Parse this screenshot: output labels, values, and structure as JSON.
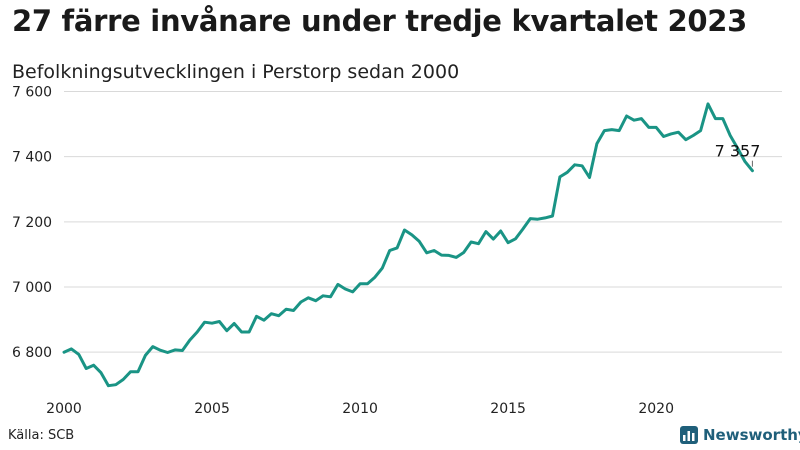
{
  "title": "27 färre invånare under tredje kvartalet 2023",
  "subtitle": "Befolkningsutvecklingen i Perstorp sedan 2000",
  "source": "Källa: SCB",
  "brand": {
    "name": "Newsworthy",
    "icon": "bar-chart-logo-icon",
    "color": "#1f5f7a"
  },
  "chart_data": {
    "type": "line",
    "title": "27 färre invånare under tredje kvartalet 2023",
    "subtitle": "Befolkningsutvecklingen i Perstorp sedan 2000",
    "xlabel": "",
    "ylabel": "",
    "x_ticks": [
      "2000",
      "2005",
      "2010",
      "2015",
      "2020"
    ],
    "y_ticks": [
      "6 800",
      "7 000",
      "7 200",
      "7 400",
      "7 600"
    ],
    "xlim": [
      2000,
      2024.25
    ],
    "ylim": [
      6690,
      7620
    ],
    "grid": "horizontal",
    "line_color": "#1a9485",
    "end_label": "7 357",
    "series": [
      {
        "name": "",
        "x_start": 2000.0,
        "x_step": 0.25,
        "values": [
          6800,
          6810,
          6793,
          6750,
          6760,
          6737,
          6697,
          6700,
          6716,
          6740,
          6740,
          6790,
          6817,
          6806,
          6799,
          6807,
          6805,
          6837,
          6862,
          6892,
          6889,
          6894,
          6866,
          6888,
          6862,
          6862,
          6910,
          6898,
          6918,
          6912,
          6932,
          6928,
          6954,
          6967,
          6958,
          6973,
          6970,
          7008,
          6994,
          6985,
          7010,
          7010,
          7030,
          7058,
          7112,
          7120,
          7175,
          7160,
          7140,
          7105,
          7112,
          7098,
          7097,
          7091,
          7106,
          7138,
          7133,
          7170,
          7147,
          7172,
          7136,
          7148,
          7178,
          7210,
          7208,
          7212,
          7218,
          7338,
          7352,
          7375,
          7372,
          7336,
          7440,
          7480,
          7483,
          7480,
          7525,
          7512,
          7517,
          7490,
          7490,
          7462,
          7470,
          7475,
          7452,
          7465,
          7480,
          7562,
          7517,
          7517,
          7465,
          7426,
          7385,
          7357
        ]
      }
    ]
  }
}
